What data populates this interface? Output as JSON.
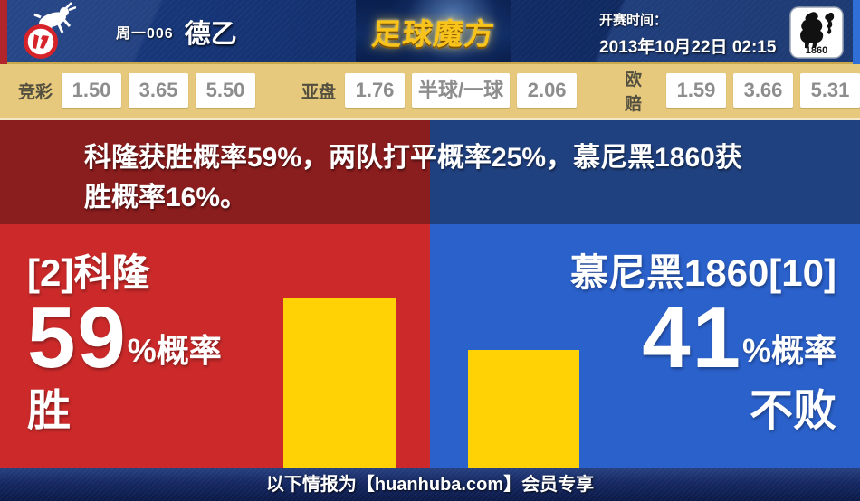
{
  "header": {
    "match_code": "周一006",
    "league": "德乙",
    "brand": "足球魔方",
    "kickoff_label": "开赛时间：",
    "kickoff_time": "2013年10月22日 02:15",
    "home_crest": "fc-koln-goat-badge",
    "away_crest": "tsv-1860-munich-lion-shield",
    "away_crest_text": "1860"
  },
  "odds": {
    "groups": [
      {
        "label": "竞彩",
        "values": [
          "1.50",
          "3.65",
          "5.50"
        ]
      },
      {
        "label": "亚盘",
        "values": [
          "1.76",
          "半球/一球",
          "2.06"
        ]
      },
      {
        "label": "欧赔",
        "values": [
          "1.59",
          "3.66",
          "5.31"
        ]
      }
    ]
  },
  "summary": {
    "text": "科隆获胜概率59%，两队打平概率25%，慕尼黑1860获胜概率16%。",
    "probabilities": {
      "home_win_pct": 59,
      "draw_pct": 25,
      "away_win_pct": 16
    }
  },
  "home": {
    "name": "[2]科隆",
    "probability": 59,
    "prob_suffix": "%概率",
    "outcome": "胜"
  },
  "away": {
    "name": "慕尼黑1860[10]",
    "probability": 41,
    "prob_suffix": "%概率",
    "outcome": "不败"
  },
  "footer": {
    "text": "以下情报为【huanhuba.com】会员专享"
  },
  "colors": {
    "home_red": "#cc2a2a",
    "home_dark_red": "#8a1d1d",
    "away_blue": "#2b61cb",
    "away_dark_blue": "#20417f",
    "bar_yellow": "#ffd205",
    "odds_bar_bg": "#e7c97d",
    "header_navy": "#132f6c",
    "brand_gold": "#f8c41c"
  },
  "chart_data": {
    "type": "bar",
    "categories": [
      "科隆 胜",
      "慕尼黑1860 不败"
    ],
    "values": [
      59,
      41
    ],
    "unit": "%",
    "ylim": [
      0,
      100
    ],
    "legend": "none",
    "grid": false
  }
}
